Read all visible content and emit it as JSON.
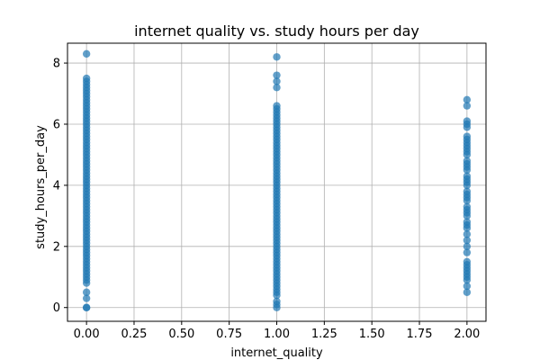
{
  "chart_data": {
    "type": "scatter",
    "title": "internet quality vs. study hours per day",
    "xlabel": "internet_quality",
    "ylabel": "study_hours_per_day",
    "xlim": [
      -0.1,
      2.1
    ],
    "ylim": [
      -0.45,
      8.65
    ],
    "grid": true,
    "color": "#1f77b4",
    "x_ticks": [
      0.0,
      0.25,
      0.5,
      0.75,
      1.0,
      1.25,
      1.5,
      1.75,
      2.0
    ],
    "x_tick_labels": [
      "0.00",
      "0.25",
      "0.50",
      "0.75",
      "1.00",
      "1.25",
      "1.50",
      "1.75",
      "2.00"
    ],
    "y_ticks": [
      0,
      2,
      4,
      6,
      8
    ],
    "y_tick_labels": [
      "0",
      "2",
      "4",
      "6",
      "8"
    ],
    "series": [
      {
        "x": 0,
        "y": [
          0.0,
          0.0,
          0.3,
          0.5,
          0.8,
          0.9,
          1.0,
          1.1,
          1.2,
          1.3,
          1.4,
          1.5,
          1.6,
          1.7,
          1.8,
          1.9,
          2.0,
          2.1,
          2.2,
          2.3,
          2.4,
          2.5,
          2.6,
          2.7,
          2.8,
          2.9,
          3.0,
          3.1,
          3.2,
          3.3,
          3.4,
          3.5,
          3.6,
          3.7,
          3.8,
          3.9,
          4.0,
          4.1,
          4.2,
          4.3,
          4.4,
          4.5,
          4.6,
          4.7,
          4.8,
          4.9,
          5.0,
          5.1,
          5.2,
          5.3,
          5.4,
          5.5,
          5.6,
          5.7,
          5.8,
          5.9,
          6.0,
          6.1,
          6.2,
          6.3,
          6.4,
          6.5,
          6.6,
          6.7,
          6.8,
          6.9,
          7.0,
          7.1,
          7.2,
          7.3,
          7.4,
          7.5,
          8.3
        ]
      },
      {
        "x": 1,
        "y": [
          0.0,
          0.1,
          0.2,
          0.4,
          0.5,
          0.6,
          0.7,
          0.8,
          0.9,
          1.0,
          1.1,
          1.2,
          1.3,
          1.4,
          1.5,
          1.6,
          1.7,
          1.8,
          1.9,
          2.0,
          2.1,
          2.2,
          2.3,
          2.4,
          2.5,
          2.6,
          2.7,
          2.8,
          2.9,
          3.0,
          3.1,
          3.2,
          3.3,
          3.4,
          3.5,
          3.6,
          3.7,
          3.8,
          3.9,
          4.0,
          4.1,
          4.2,
          4.3,
          4.4,
          4.5,
          4.6,
          4.7,
          4.8,
          4.9,
          5.0,
          5.1,
          5.2,
          5.3,
          5.4,
          5.5,
          5.6,
          5.7,
          5.8,
          5.9,
          6.0,
          6.1,
          6.2,
          6.3,
          6.4,
          6.5,
          6.6,
          7.2,
          7.4,
          7.6,
          8.2
        ]
      },
      {
        "x": 2,
        "y": [
          0.5,
          0.7,
          0.9,
          1.0,
          1.1,
          1.2,
          1.3,
          1.4,
          1.5,
          1.8,
          2.0,
          2.2,
          2.4,
          2.6,
          2.7,
          2.8,
          3.0,
          3.1,
          3.2,
          3.3,
          3.5,
          3.6,
          3.7,
          3.8,
          4.0,
          4.1,
          4.2,
          4.3,
          4.5,
          4.6,
          4.7,
          4.8,
          5.0,
          5.1,
          5.2,
          5.3,
          5.4,
          5.5,
          5.6,
          5.9,
          6.0,
          6.1,
          6.6,
          6.8
        ]
      }
    ]
  }
}
